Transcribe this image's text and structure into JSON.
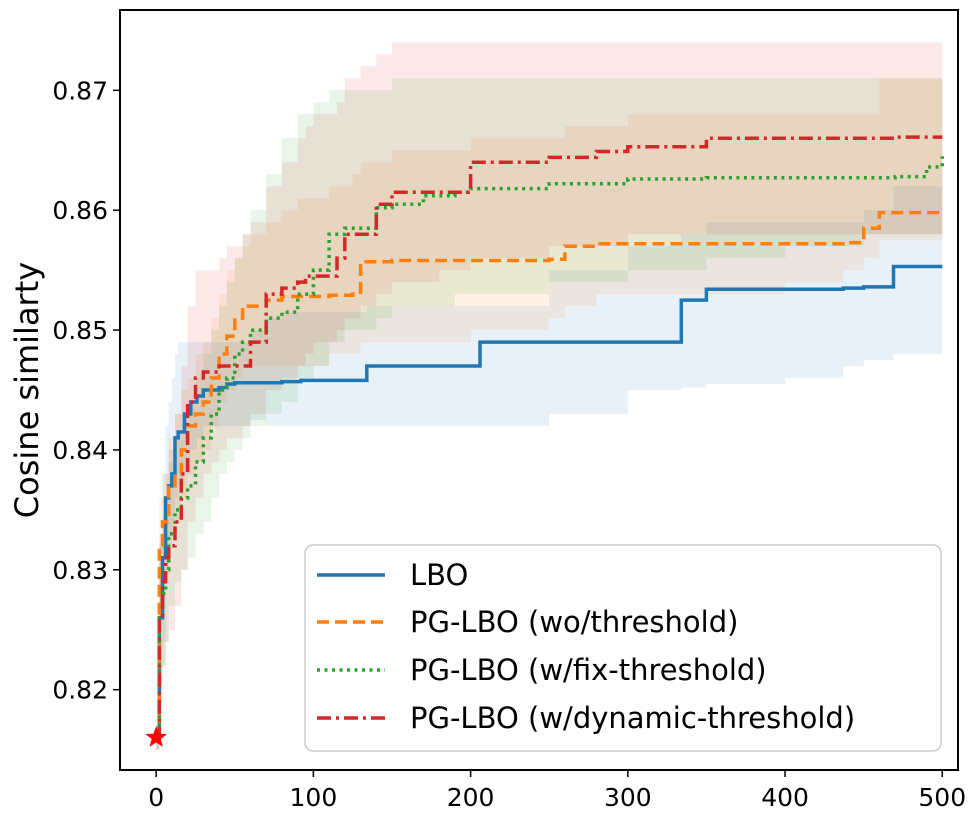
{
  "chart_data": {
    "type": "line",
    "title": "",
    "xlabel": "",
    "ylabel": "Cosine similarty",
    "xlim": [
      -23,
      510
    ],
    "ylim": [
      0.8133,
      0.8767
    ],
    "xticks": [
      0,
      100,
      200,
      300,
      400,
      500
    ],
    "xtick_labels": [
      "0",
      "100",
      "200",
      "300",
      "400",
      "500"
    ],
    "yticks": [
      0.82,
      0.83,
      0.84,
      0.85,
      0.86,
      0.87
    ],
    "ytick_labels": [
      "0.82",
      "0.83",
      "0.84",
      "0.85",
      "0.86",
      "0.87"
    ],
    "grid": false,
    "legend_position": "lower-right",
    "start_marker": {
      "x": 0,
      "y": 0.816,
      "shape": "star",
      "color": "#ff0000"
    },
    "series": [
      {
        "name": "LBO",
        "color": "#1f77b4",
        "style": "solid",
        "x": [
          0,
          2,
          4,
          6,
          8,
          10,
          12,
          14,
          18,
          22,
          26,
          30,
          35,
          40,
          45,
          50,
          60,
          70,
          80,
          92,
          100,
          134,
          150,
          206,
          250,
          300,
          334,
          350,
          400,
          437,
          450,
          469,
          500
        ],
        "y": [
          0.816,
          0.826,
          0.831,
          0.836,
          0.837,
          0.838,
          0.841,
          0.8415,
          0.843,
          0.844,
          0.8445,
          0.845,
          0.845,
          0.8452,
          0.8455,
          0.8456,
          0.8456,
          0.8456,
          0.8457,
          0.8458,
          0.8458,
          0.847,
          0.847,
          0.849,
          0.849,
          0.849,
          0.8525,
          0.8534,
          0.8534,
          0.8535,
          0.8536,
          0.8553,
          0.8553
        ],
        "upper": [
          0.817,
          0.832,
          0.838,
          0.842,
          0.844,
          0.846,
          0.848,
          0.849,
          0.849,
          0.849,
          0.849,
          0.849,
          0.849,
          0.849,
          0.849,
          0.849,
          0.85,
          0.851,
          0.8515,
          0.8515,
          0.8515,
          0.852,
          0.852,
          0.852,
          0.855,
          0.857,
          0.858,
          0.859,
          0.859,
          0.859,
          0.86,
          0.862,
          0.862
        ],
        "lower": [
          0.815,
          0.82,
          0.824,
          0.83,
          0.832,
          0.834,
          0.836,
          0.837,
          0.838,
          0.84,
          0.841,
          0.842,
          0.842,
          0.842,
          0.842,
          0.842,
          0.8425,
          0.842,
          0.842,
          0.842,
          0.842,
          0.842,
          0.842,
          0.842,
          0.843,
          0.845,
          0.8452,
          0.8455,
          0.846,
          0.847,
          0.8475,
          0.848,
          0.848
        ]
      },
      {
        "name": "PG-LBO (wo/threshold)",
        "color": "#ff7f0e",
        "style": "dashed",
        "x": [
          0,
          2,
          4,
          8,
          12,
          16,
          20,
          25,
          30,
          35,
          40,
          45,
          50,
          55,
          60,
          70,
          80,
          90,
          110,
          125,
          130,
          150,
          200,
          250,
          260,
          280,
          300,
          350,
          400,
          437,
          450,
          460,
          500
        ],
        "y": [
          0.816,
          0.832,
          0.834,
          0.837,
          0.838,
          0.84,
          0.842,
          0.843,
          0.844,
          0.846,
          0.848,
          0.8495,
          0.851,
          0.852,
          0.852,
          0.8525,
          0.8528,
          0.8528,
          0.8529,
          0.853,
          0.8557,
          0.8558,
          0.8558,
          0.8559,
          0.857,
          0.8572,
          0.8572,
          0.8572,
          0.8572,
          0.8573,
          0.8585,
          0.8598,
          0.8598
        ],
        "upper": [
          0.817,
          0.836,
          0.838,
          0.841,
          0.843,
          0.845,
          0.846,
          0.848,
          0.849,
          0.851,
          0.853,
          0.855,
          0.856,
          0.857,
          0.858,
          0.859,
          0.86,
          0.861,
          0.862,
          0.863,
          0.864,
          0.865,
          0.866,
          0.866,
          0.867,
          0.867,
          0.868,
          0.868,
          0.868,
          0.868,
          0.868,
          0.871,
          0.872
        ],
        "lower": [
          0.815,
          0.826,
          0.83,
          0.833,
          0.834,
          0.836,
          0.838,
          0.839,
          0.84,
          0.842,
          0.844,
          0.845,
          0.846,
          0.847,
          0.847,
          0.847,
          0.847,
          0.847,
          0.848,
          0.848,
          0.849,
          0.849,
          0.85,
          0.851,
          0.852,
          0.853,
          0.853,
          0.853,
          0.854,
          0.855,
          0.856,
          0.8575,
          0.858
        ]
      },
      {
        "name": "PG-LBO (w/fix-threshold)",
        "color": "#2ca02c",
        "style": "dotted",
        "x": [
          0,
          2,
          4,
          6,
          8,
          12,
          16,
          20,
          25,
          30,
          35,
          40,
          45,
          50,
          55,
          60,
          70,
          80,
          90,
          100,
          110,
          120,
          140,
          150,
          170,
          190,
          200,
          250,
          300,
          350,
          400,
          450,
          470,
          490,
          500
        ],
        "y": [
          0.816,
          0.826,
          0.828,
          0.83,
          0.833,
          0.835,
          0.836,
          0.837,
          0.839,
          0.841,
          0.843,
          0.845,
          0.846,
          0.848,
          0.849,
          0.85,
          0.851,
          0.8515,
          0.853,
          0.855,
          0.858,
          0.8585,
          0.8602,
          0.8605,
          0.8612,
          0.8615,
          0.8618,
          0.8622,
          0.8626,
          0.8627,
          0.8627,
          0.8627,
          0.8628,
          0.8636,
          0.8645
        ],
        "upper": [
          0.817,
          0.832,
          0.834,
          0.836,
          0.839,
          0.841,
          0.843,
          0.844,
          0.846,
          0.848,
          0.85,
          0.852,
          0.854,
          0.856,
          0.858,
          0.86,
          0.863,
          0.866,
          0.868,
          0.869,
          0.87,
          0.87,
          0.87,
          0.871,
          0.871,
          0.871,
          0.871,
          0.871,
          0.871,
          0.871,
          0.871,
          0.871,
          0.871,
          0.871,
          0.871
        ],
        "lower": [
          0.815,
          0.82,
          0.822,
          0.824,
          0.827,
          0.829,
          0.83,
          0.831,
          0.833,
          0.834,
          0.836,
          0.838,
          0.839,
          0.84,
          0.841,
          0.842,
          0.843,
          0.844,
          0.846,
          0.847,
          0.849,
          0.85,
          0.851,
          0.852,
          0.852,
          0.853,
          0.853,
          0.854,
          0.855,
          0.856,
          0.857,
          0.858,
          0.858,
          0.858,
          0.858
        ]
      },
      {
        "name": "PG-LBO (w/dynamic-threshold)",
        "color": "#d62728",
        "style": "dashdot",
        "x": [
          0,
          2,
          4,
          6,
          8,
          12,
          16,
          20,
          25,
          30,
          35,
          40,
          45,
          55,
          60,
          70,
          80,
          90,
          95,
          100,
          115,
          120,
          130,
          140,
          150,
          180,
          200,
          250,
          280,
          300,
          350,
          400,
          450,
          470,
          500
        ],
        "y": [
          0.816,
          0.826,
          0.829,
          0.831,
          0.832,
          0.834,
          0.838,
          0.844,
          0.846,
          0.8465,
          0.8465,
          0.847,
          0.847,
          0.847,
          0.849,
          0.853,
          0.8535,
          0.854,
          0.8545,
          0.8545,
          0.856,
          0.858,
          0.858,
          0.8605,
          0.8615,
          0.8615,
          0.864,
          0.8644,
          0.8649,
          0.8653,
          0.866,
          0.866,
          0.866,
          0.8661,
          0.8661
        ],
        "upper": [
          0.817,
          0.833,
          0.836,
          0.838,
          0.84,
          0.843,
          0.847,
          0.852,
          0.855,
          0.855,
          0.855,
          0.856,
          0.857,
          0.858,
          0.859,
          0.862,
          0.864,
          0.866,
          0.867,
          0.868,
          0.869,
          0.871,
          0.872,
          0.873,
          0.874,
          0.874,
          0.874,
          0.874,
          0.874,
          0.874,
          0.874,
          0.874,
          0.874,
          0.874,
          0.874
        ],
        "lower": [
          0.815,
          0.819,
          0.822,
          0.824,
          0.825,
          0.827,
          0.83,
          0.834,
          0.836,
          0.838,
          0.839,
          0.84,
          0.841,
          0.842,
          0.843,
          0.845,
          0.846,
          0.847,
          0.848,
          0.849,
          0.85,
          0.851,
          0.852,
          0.853,
          0.854,
          0.855,
          0.856,
          0.857,
          0.857,
          0.858,
          0.858,
          0.858,
          0.858,
          0.858,
          0.858
        ]
      }
    ]
  }
}
